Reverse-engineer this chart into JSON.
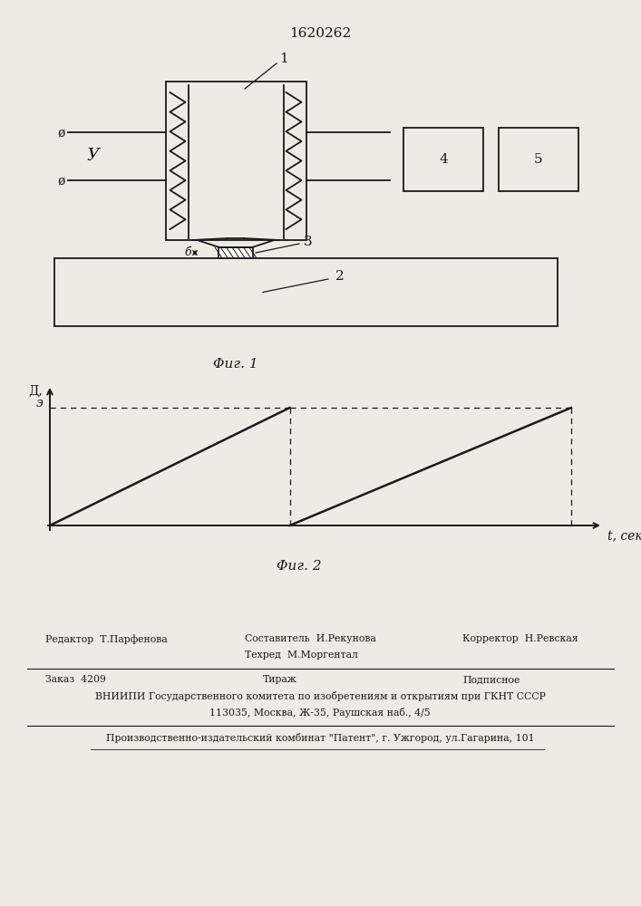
{
  "patent_number": "1620262",
  "fig1_label": "Φиг. 1",
  "fig2_label": "Φиг. 2",
  "y_axis_label1": "Д,",
  "y_axis_label2": "э",
  "x_axis_label": "t, сек",
  "background_color": "#eeebe4",
  "line_color": "#1a1a1a",
  "label1": "1",
  "label2": "2",
  "label3": "3",
  "label4": "4",
  "label5": "5",
  "label_U": "У",
  "label_phi1": "ø",
  "label_phi2": "ø",
  "label_delta": "б",
  "footer_editor": "Редактор  Т.Парфенова",
  "footer_composer": "Составитель  И.Рекунова",
  "footer_techred": "Техред  М.Моргентал",
  "footer_corrector": "Корректор  Н.Ревская",
  "footer_order": "Заказ  4209",
  "footer_tirazh": "Тираж",
  "footer_podpisnoe": "Подписное",
  "footer_vniiipi": "ВНИИПИ Государственного комитета по изобретениям и открытиям при ГКНТ СССР",
  "footer_address": "113035, Москва, Ж-35, Раушская наб., 4/5",
  "footer_publisher": "Производственно-издательский комбинат \"Патент\", г. Ужгород, ул.Гагарина, 101"
}
